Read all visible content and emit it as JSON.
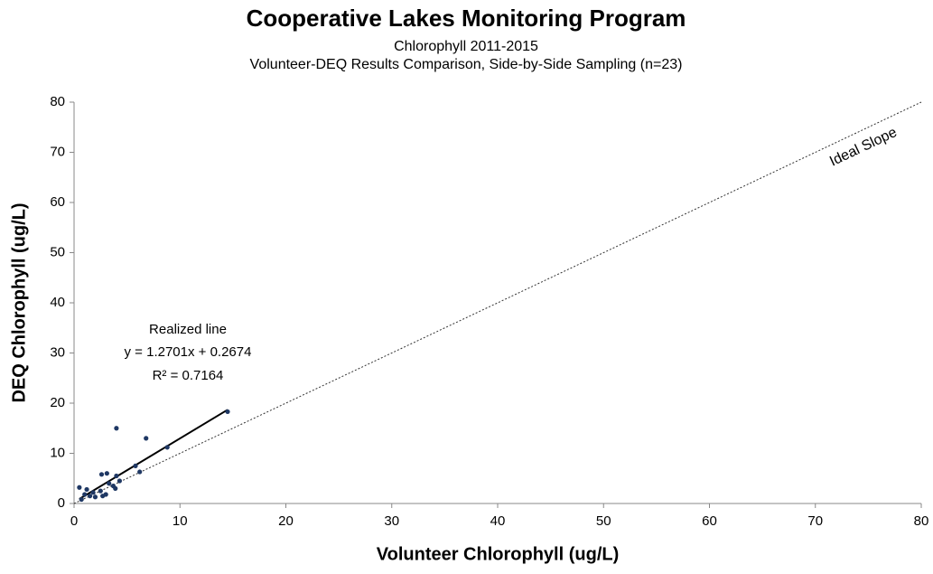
{
  "chart_data": {
    "type": "scatter",
    "title": "Cooperative Lakes Monitoring Program",
    "subtitle": [
      "Chlorophyll 2011-2015",
      "Volunteer-DEQ Results Comparison, Side-by-Side Sampling (n=23)"
    ],
    "x_label": "Volunteer Chlorophyll (ug/L)",
    "y_label": "DEQ Chlorophyll (ug/L)",
    "x": [
      0.5,
      0.7,
      1.0,
      1.2,
      1.5,
      1.8,
      2.0,
      2.5,
      2.6,
      2.7,
      3.0,
      3.1,
      3.3,
      3.7,
      3.9,
      4.0,
      4.0,
      4.3,
      5.8,
      6.2,
      6.8,
      8.8,
      14.5
    ],
    "values": [
      3.2,
      0.8,
      1.8,
      2.8,
      1.5,
      2.2,
      1.3,
      2.5,
      5.8,
      1.5,
      1.8,
      6.0,
      4.0,
      3.5,
      3.0,
      15.0,
      5.5,
      4.5,
      7.5,
      6.3,
      13.0,
      11.2,
      18.3
    ],
    "color": "#1f3864",
    "xlim": [
      0,
      80
    ],
    "ylim": [
      0,
      80
    ],
    "xticks": [
      0,
      10,
      20,
      30,
      40,
      50,
      60,
      70,
      80
    ],
    "yticks": [
      0,
      10,
      20,
      30,
      40,
      50,
      60,
      70,
      80
    ],
    "grid": false,
    "trendline": {
      "name": "Realized line",
      "slope": 1.2701,
      "intercept": 0.2674,
      "equation": "y = 1.2701x + 0.2674",
      "r_squared_label": "R² = 0.7164"
    },
    "reference_line": {
      "name": "Ideal Slope"
    }
  }
}
